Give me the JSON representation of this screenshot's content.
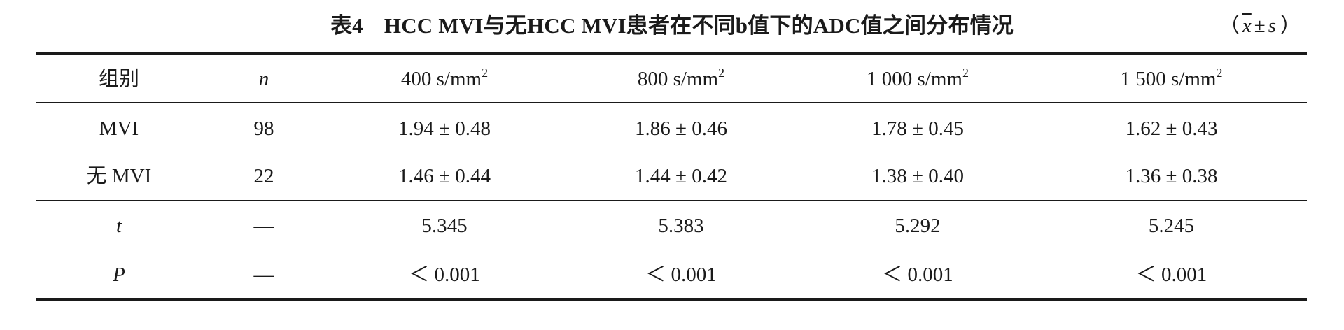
{
  "title": {
    "number": "表4",
    "text": "HCC MVI与无HCC MVI患者在不同b值下的ADC值之间分布情况",
    "unit_open": "（",
    "unit_mean": "x",
    "unit_pm": "±",
    "unit_sd": "s",
    "unit_close": "）"
  },
  "header": {
    "group": "组别",
    "n": "n",
    "columns": [
      {
        "value": "400 s/mm",
        "sup": "2"
      },
      {
        "value": "800 s/mm",
        "sup": "2"
      },
      {
        "value": "1 000 s/mm",
        "sup": "2"
      },
      {
        "value": "1 500 s/mm",
        "sup": "2"
      }
    ]
  },
  "rows": [
    {
      "group": "MVI",
      "n": "98",
      "values": [
        "1.94 ± 0.48",
        "1.86 ± 0.46",
        "1.78 ± 0.45",
        "1.62 ± 0.43"
      ]
    },
    {
      "group": "无 MVI",
      "n": "22",
      "values": [
        "1.46 ± 0.44",
        "1.44 ± 0.42",
        "1.38 ± 0.40",
        "1.36 ± 0.38"
      ]
    }
  ],
  "stats": [
    {
      "label": "t",
      "n": "—",
      "values": [
        "5.345",
        "5.383",
        "5.292",
        "5.245"
      ]
    },
    {
      "label": "P",
      "n": "—",
      "values": [
        "＜ 0.001",
        "＜ 0.001",
        "＜ 0.001",
        "＜ 0.001"
      ]
    }
  ]
}
